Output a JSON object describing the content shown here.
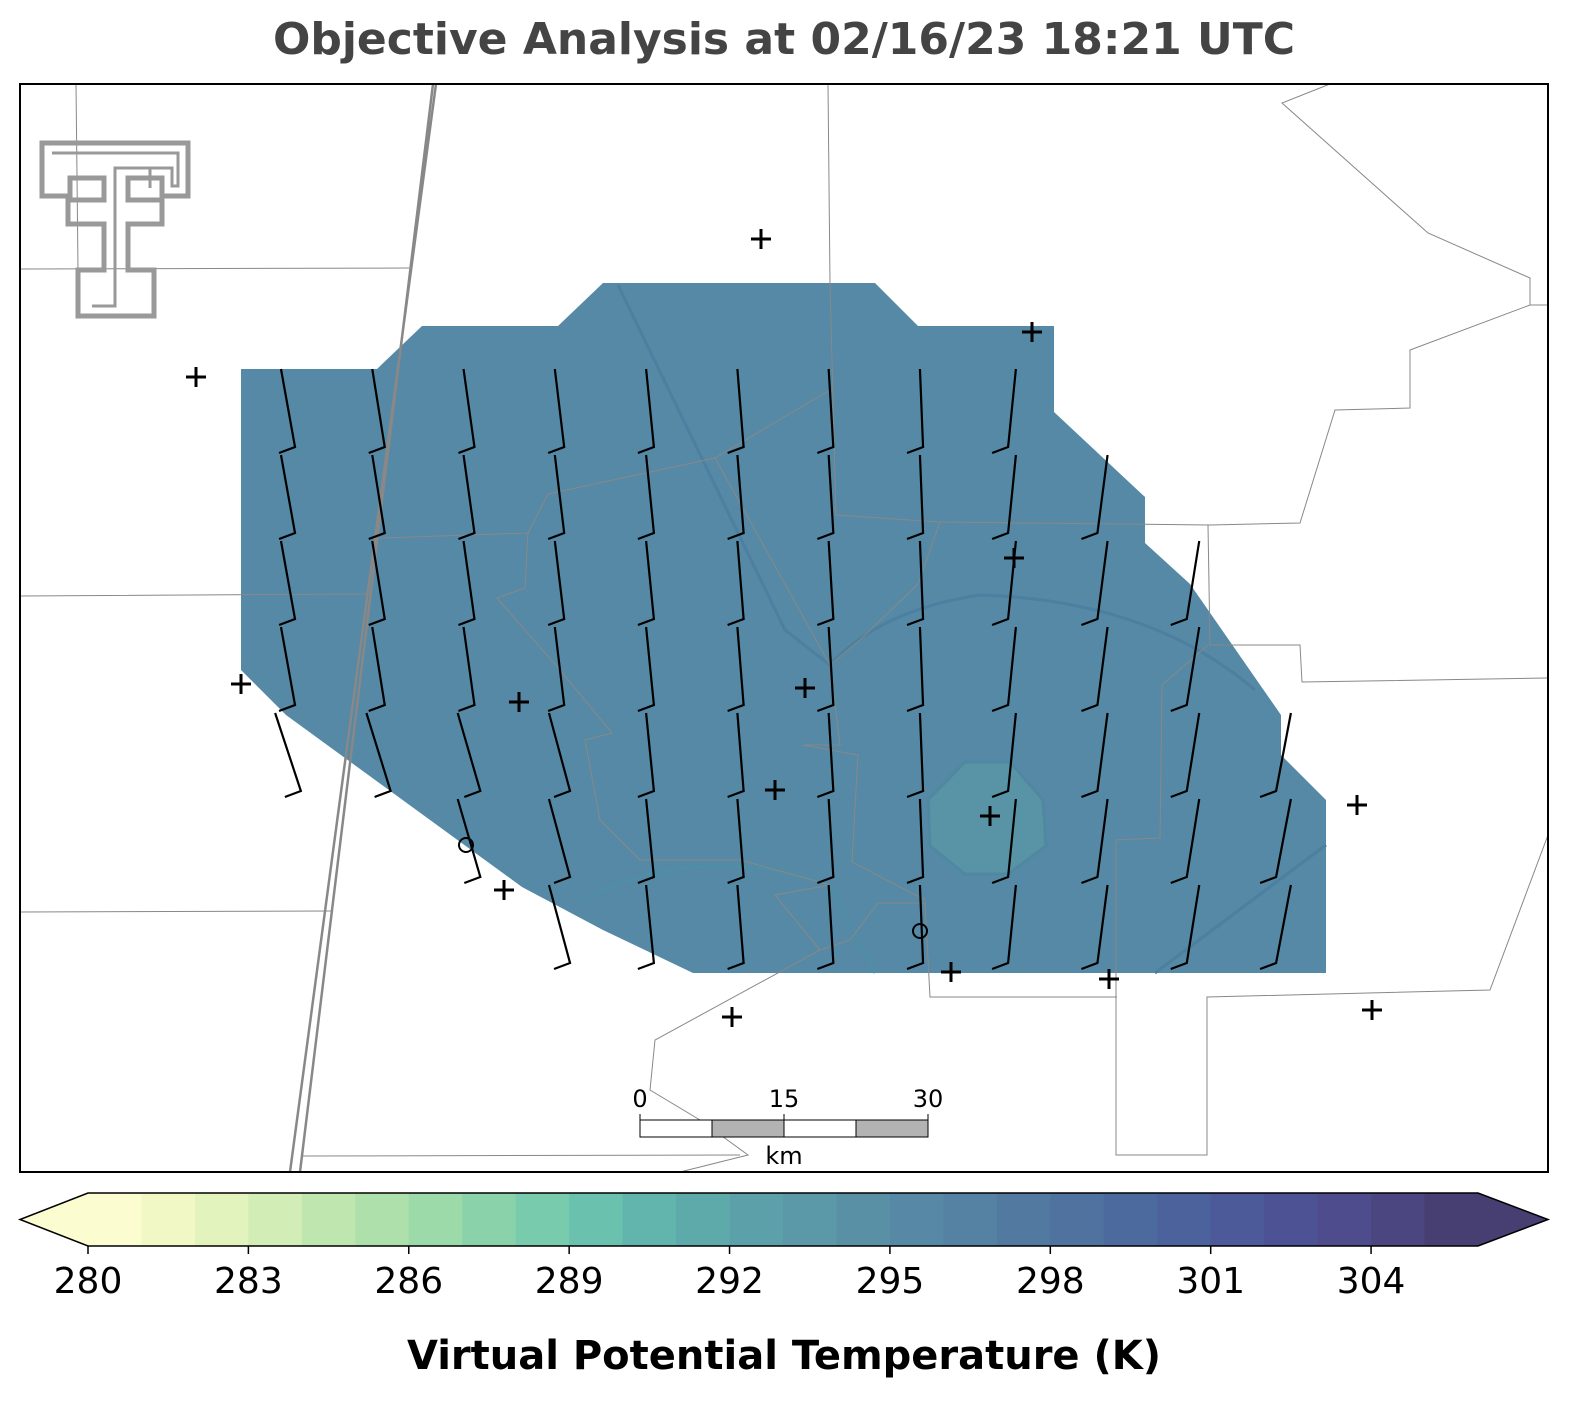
{
  "title": "Objective Analysis at 02/16/23 18:21 UTC",
  "colorbar": {
    "label": "Virtual Potential Temperature (K)",
    "lim": [
      280,
      306
    ],
    "ticks": [
      280,
      283,
      286,
      289,
      292,
      295,
      298,
      301,
      304
    ],
    "colors": [
      "#fbfcd0",
      "#f1f8c6",
      "#e3f3bd",
      "#d2edb6",
      "#c0e6af",
      "#aee0ab",
      "#9cdaa9",
      "#89d2aa",
      "#78cbad",
      "#6ac1ae",
      "#62b5ad",
      "#5eaaab",
      "#5ca0a9",
      "#5b98a8",
      "#5990a6",
      "#5788a5",
      "#5581a3",
      "#527aa1",
      "#4f729f",
      "#4d6a9e",
      "#4c629c",
      "#4c5a9a",
      "#4d5294",
      "#4e4c8c",
      "#4c4680",
      "#473f72"
    ]
  },
  "scale_bar": {
    "ticks": [
      0,
      15,
      30
    ],
    "unit": "km"
  }
}
